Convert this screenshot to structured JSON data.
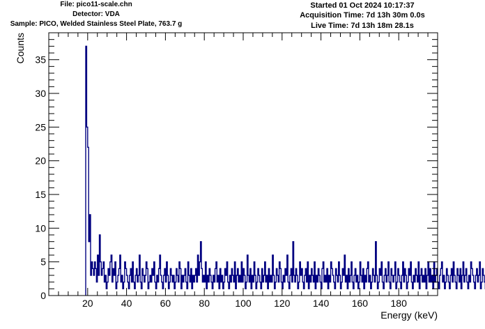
{
  "header": {
    "file": "File: pico11-scale.chn",
    "detector": "Detector: VDA",
    "sample": "Sample: PICO, Welded Stainless Steel Plate, 763.7 g",
    "started": "Started 01 Oct 2024 10:17:37",
    "acquisition": "Acquisition Time: 7d 13h 30m 0.0s",
    "live": "Live Time: 7d 13h 18m 28.1s"
  },
  "chart_data": {
    "type": "bar",
    "style": "step-histogram",
    "xlabel": "Energy (keV)",
    "ylabel": "Counts",
    "xlim": [
      0,
      200
    ],
    "ylim": [
      0,
      39
    ],
    "x_ticks": [
      20,
      40,
      60,
      80,
      100,
      120,
      140,
      160,
      180
    ],
    "y_ticks": [
      0,
      5,
      10,
      15,
      20,
      25,
      30,
      35
    ],
    "grid": false,
    "legend": "none",
    "line_color": "#000080",
    "series": [
      {
        "bin_start": 19.0,
        "bin_width": 0.5,
        "values": [
          37,
          25,
          22,
          8,
          12,
          3,
          5,
          4,
          3,
          5,
          4,
          2,
          6,
          3,
          9,
          5,
          3,
          4,
          5,
          2,
          3,
          1,
          2,
          4,
          3,
          5,
          6,
          2,
          4,
          3,
          5,
          1,
          2,
          3,
          4,
          6,
          2,
          3,
          1,
          2,
          5,
          4,
          3,
          2,
          1,
          3,
          4,
          2,
          5,
          2,
          1,
          3,
          4,
          2,
          3,
          6,
          2,
          1,
          4,
          3,
          2,
          3,
          5,
          4,
          1,
          2,
          3,
          2,
          4,
          3,
          5,
          2,
          1,
          3,
          2,
          4,
          6,
          3,
          2,
          1,
          3,
          4,
          2,
          5,
          3,
          1,
          2,
          4,
          3,
          2,
          3,
          1,
          2,
          4,
          3,
          2,
          5,
          4,
          1,
          3,
          2,
          3,
          4,
          2,
          1,
          5,
          3,
          2,
          4,
          1,
          3,
          2,
          3,
          4,
          2,
          6,
          3,
          5,
          8,
          4,
          2,
          3,
          2,
          5,
          1,
          3,
          2,
          4,
          3,
          2,
          1,
          3,
          2,
          4,
          5,
          2,
          3,
          1,
          4,
          2,
          3,
          1,
          2,
          4,
          3,
          5,
          2,
          1,
          3,
          2,
          4,
          3,
          2,
          5,
          1,
          3,
          4,
          2,
          3,
          2,
          5,
          2,
          4,
          3,
          1,
          2,
          6,
          3,
          2,
          4,
          1,
          3,
          2,
          5,
          3,
          1,
          2,
          4,
          3,
          2,
          1,
          4,
          2,
          3,
          5,
          2,
          3,
          1,
          4,
          2,
          3,
          2,
          6,
          3,
          1,
          2,
          4,
          3,
          2,
          5,
          4,
          2,
          1,
          3,
          2,
          4,
          3,
          6,
          2,
          1,
          3,
          4,
          2,
          8,
          3,
          2,
          4,
          3,
          1,
          2,
          5,
          3,
          4,
          2,
          1,
          3,
          4,
          2,
          5,
          1,
          3,
          2,
          4,
          3,
          2,
          5,
          1,
          3,
          2,
          4,
          3,
          2,
          1,
          4,
          5,
          2,
          3,
          2,
          4,
          1,
          3,
          2,
          5,
          4,
          3,
          2,
          1,
          4,
          3,
          2,
          5,
          3,
          1,
          2,
          4,
          3,
          6,
          2,
          3,
          1,
          4,
          2,
          3,
          5,
          2,
          1,
          3,
          4,
          2,
          3,
          1,
          2,
          5,
          3,
          2,
          4,
          1,
          3,
          2,
          4,
          5,
          2,
          3,
          1,
          2,
          4,
          3,
          2,
          8,
          3,
          1,
          2,
          4,
          3,
          5,
          2,
          1,
          3,
          4,
          2,
          3,
          5,
          2,
          1,
          4,
          3,
          2,
          3,
          5,
          1,
          2,
          4,
          3,
          2,
          1,
          3,
          5,
          2,
          4,
          3,
          1,
          2,
          4,
          3,
          5,
          2,
          1,
          3,
          2,
          4,
          3,
          2,
          5,
          1,
          3,
          4,
          2,
          3,
          2,
          4,
          1,
          3,
          5,
          2,
          4,
          2,
          3,
          1,
          5,
          2,
          3,
          4,
          2,
          1,
          3,
          4,
          5,
          2,
          3,
          1,
          2,
          4,
          3,
          2,
          1,
          3,
          4,
          2,
          5,
          3,
          2,
          1,
          4,
          3,
          2,
          4,
          1,
          3,
          5,
          2,
          3,
          4,
          2,
          1,
          3,
          2,
          5,
          4,
          3,
          2,
          1,
          3,
          4,
          2,
          3,
          5,
          1,
          2,
          4,
          3,
          2,
          1,
          3,
          2
        ]
      }
    ]
  }
}
